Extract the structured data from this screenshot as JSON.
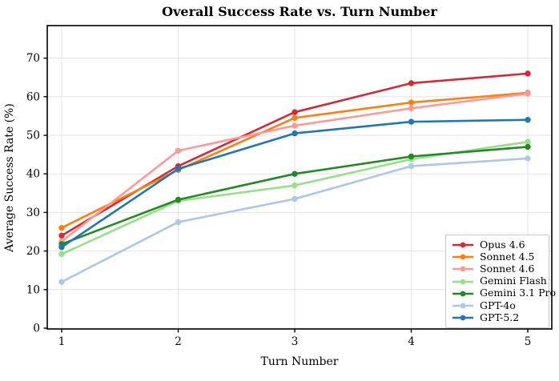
{
  "chart_data": {
    "type": "line",
    "title": "Overall Success Rate vs. Turn Number",
    "xlabel": "Turn Number",
    "ylabel": "Average Success Rate (%)",
    "x": [
      1,
      2,
      3,
      4,
      5
    ],
    "xticks": [
      1,
      2,
      3,
      4,
      5
    ],
    "yticks": [
      0,
      10,
      20,
      30,
      40,
      50,
      60,
      70
    ],
    "ylim": [
      0,
      78
    ],
    "grid": true,
    "legend_position": "lower right",
    "frame_color": "#000000",
    "grid_color": "#e3e3e3",
    "series": [
      {
        "name": "Opus 4.6",
        "color": "#d62936",
        "values": [
          24,
          42,
          56,
          63.5,
          66
        ]
      },
      {
        "name": "Sonnet 4.5",
        "color": "#ff7f0e",
        "values": [
          26,
          41,
          54.5,
          58.5,
          61
        ]
      },
      {
        "name": "Sonnet 4.6",
        "color": "#ff9896",
        "values": [
          22.5,
          46,
          52.5,
          57,
          60.8
        ]
      },
      {
        "name": "Gemini Flash",
        "color": "#98df8a",
        "values": [
          19.2,
          33,
          37,
          43.8,
          48.3
        ]
      },
      {
        "name": "Gemini 3.1 Pro",
        "color": "#228b22",
        "values": [
          21.8,
          33.3,
          40,
          44.5,
          47
        ]
      },
      {
        "name": "GPT-4o",
        "color": "#aec7e8",
        "values": [
          12,
          27.5,
          33.5,
          42,
          44
        ]
      },
      {
        "name": "GPT-5.2",
        "color": "#1f77b4",
        "values": [
          21,
          41.3,
          50.5,
          53.5,
          54
        ]
      }
    ]
  }
}
